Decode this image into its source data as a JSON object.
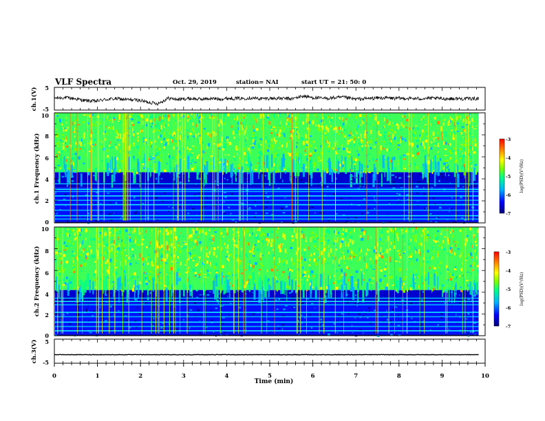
{
  "header": {
    "title": "VLF Spectra",
    "date": "Oct. 29, 2019",
    "station": "station= NAI",
    "start": "start  UT =   21: 50: 0"
  },
  "chart_data": [
    {
      "type": "line",
      "panel": "ch1-voltage",
      "ylabel": "ch.1(V)",
      "ylim": [
        -5,
        5
      ],
      "yticks": [
        "5",
        "-5"
      ],
      "xlim": [
        0,
        10
      ],
      "series_level": [
        0.3,
        0.5,
        0.0,
        -0.9,
        -1.1,
        -0.3,
        0.0,
        -0.4,
        -0.6,
        -1.5,
        -2.2,
        0.2,
        -0.3,
        0.1,
        -0.2,
        0.0,
        -0.1,
        0.2,
        0.1,
        0.4,
        0.0,
        0.2,
        0.1,
        0.0,
        1.2,
        0.5,
        0.1,
        0.4,
        0.6,
        -0.2,
        0.0,
        0.3,
        0.4,
        0.1,
        0.2,
        0.0,
        0.2,
        0.1,
        0.0,
        0.0,
        0.0,
        0.1
      ]
    },
    {
      "type": "heatmap",
      "panel": "ch1-spectrogram",
      "ylabel": "ch.1 Frequency  (kHz)",
      "ylim": [
        0,
        10
      ],
      "yticks": [
        "0",
        "2",
        "4",
        "6",
        "8",
        "10"
      ],
      "xlim": [
        0,
        9.85
      ],
      "colorbar": {
        "label": "log(PSD)(V²/Hz)",
        "min": -7,
        "max": -3,
        "ticks": [
          "-3",
          "-4",
          "-5",
          "-6",
          "-7"
        ]
      },
      "band_edges_khz": {
        "upper_noise_floor": 4.6,
        "quiet_band_top": 3.2,
        "line_bands": [
          3.6,
          3.1,
          2.9,
          2.5,
          2.1,
          1.7,
          1.2,
          0.7,
          0.4
        ]
      }
    },
    {
      "type": "heatmap",
      "panel": "ch2-spectrogram",
      "ylabel": "ch.2 Frequency  (kHz)",
      "ylim": [
        0,
        10
      ],
      "yticks": [
        "0",
        "2",
        "4",
        "6",
        "8",
        "10"
      ],
      "xlim": [
        0,
        9.85
      ],
      "colorbar": {
        "label": "log(PSD)(V²/Hz)",
        "min": -7,
        "max": -3,
        "ticks": [
          "-3",
          "-4",
          "-5",
          "-6",
          "-7"
        ]
      },
      "band_edges_khz": {
        "upper_noise_floor": 4.2,
        "quiet_band_top": 3.0,
        "line_bands": [
          3.5,
          3.2,
          2.9,
          2.2,
          1.8,
          1.3,
          0.9,
          0.5
        ]
      }
    },
    {
      "type": "line",
      "panel": "ch3-voltage",
      "ylabel": "ch.3(V)",
      "ylim": [
        -5,
        5
      ],
      "yticks": [
        "5",
        "-5"
      ],
      "xlim": [
        0,
        10
      ],
      "series_level": [
        -1.5,
        -1.5
      ]
    }
  ],
  "xaxis": {
    "label": "Time  (min)",
    "ticks": [
      "0",
      "1",
      "2",
      "3",
      "4",
      "5",
      "6",
      "7",
      "8",
      "9",
      "10"
    ]
  },
  "colors": {
    "line": "#000000",
    "colormap": [
      "#00007a",
      "#0000ff",
      "#00b4ff",
      "#00ff8c",
      "#7cff00",
      "#ffff00",
      "#ff8000",
      "#ff0000"
    ]
  }
}
